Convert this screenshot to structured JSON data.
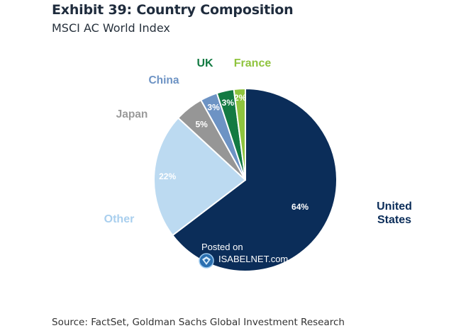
{
  "chart_data": {
    "type": "pie",
    "title": "Exhibit 39: Country Composition",
    "subtitle": "MSCI AC World Index",
    "slices": [
      {
        "name": "United States",
        "label_lines": [
          "United",
          "States"
        ],
        "value": 64,
        "value_label": "64%",
        "color": "#0b2d59",
        "value_text_color": "#ffffff",
        "name_color": "#0b2d59"
      },
      {
        "name": "Other",
        "label_lines": [
          "Other"
        ],
        "value": 22,
        "value_label": "22%",
        "color": "#bcdaf1",
        "value_text_color": "#ffffff",
        "name_color": "#a9cfee"
      },
      {
        "name": "Japan",
        "label_lines": [
          "Japan"
        ],
        "value": 5,
        "value_label": "5%",
        "color": "#969696",
        "value_text_color": "#ffffff",
        "name_color": "#9a9a9a"
      },
      {
        "name": "China",
        "label_lines": [
          "China"
        ],
        "value": 3,
        "value_label": "3%",
        "color": "#6d93c4",
        "value_text_color": "#ffffff",
        "name_color": "#6d93c4"
      },
      {
        "name": "UK",
        "label_lines": [
          "UK"
        ],
        "value": 3,
        "value_label": "3%",
        "color": "#137a42",
        "value_text_color": "#ffffff",
        "name_color": "#137a42"
      },
      {
        "name": "France",
        "label_lines": [
          "France"
        ],
        "value": 2,
        "value_label": "2%",
        "color": "#8fc43e",
        "value_text_color": "#ffffff",
        "name_color": "#8fc43e"
      }
    ]
  },
  "source": "Source: FactSet, Goldman Sachs Global Investment Research",
  "watermark": {
    "line1": "Posted on",
    "line2": "ISABELNET.com"
  }
}
